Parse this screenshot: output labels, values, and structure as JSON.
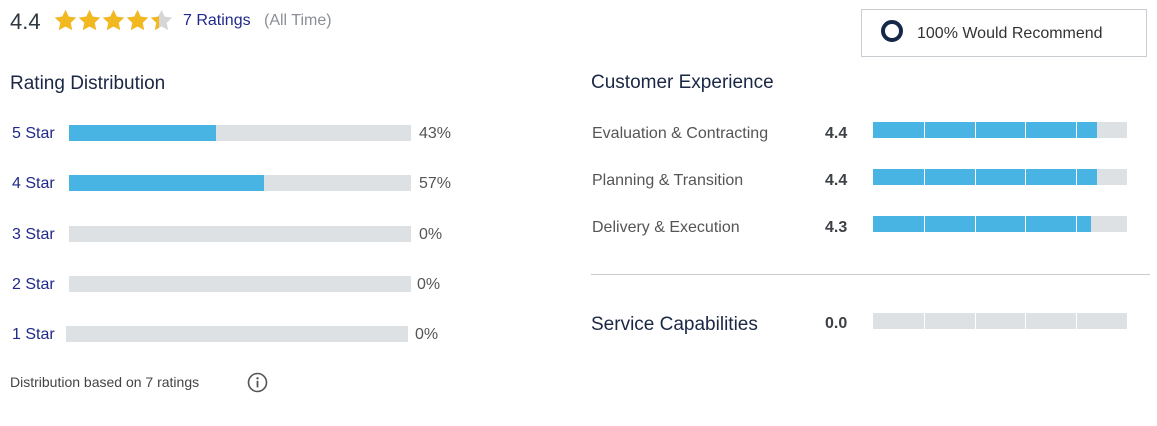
{
  "summary": {
    "overall_rating": "4.4",
    "stars_value": 4.4,
    "stars_max": 5,
    "ratings_link": "7 Ratings",
    "scope": "(All Time)",
    "recommend": "100% Would Recommend"
  },
  "colors": {
    "star": "#f2b820",
    "bar_fill": "#47b4e3",
    "bar_track": "#dde1e4",
    "heading": "#1a2745",
    "link": "#1f2a8a"
  },
  "distribution": {
    "title": "Rating Distribution",
    "rows": [
      {
        "label": "5 Star",
        "percent": "43%",
        "value": 0.43
      },
      {
        "label": "4 Star",
        "percent": "57%",
        "value": 0.57
      },
      {
        "label": "3 Star",
        "percent": "0%",
        "value": 0
      },
      {
        "label": "2 Star",
        "percent": "0%",
        "value": 0
      },
      {
        "label": "1 Star",
        "percent": "0%",
        "value": 0
      }
    ],
    "note": "Distribution based on 7 ratings",
    "note_icon": "info-icon"
  },
  "customer_experience": {
    "title": "Customer Experience",
    "rows": [
      {
        "label": "Evaluation & Contracting",
        "score": "4.4",
        "value": 4.4
      },
      {
        "label": "Planning & Transition",
        "score": "4.4",
        "value": 4.4
      },
      {
        "label": "Delivery & Execution",
        "score": "4.3",
        "value": 4.3
      }
    ]
  },
  "service_capabilities": {
    "label": "Service Capabilities",
    "score": "0.0",
    "value": 0
  }
}
